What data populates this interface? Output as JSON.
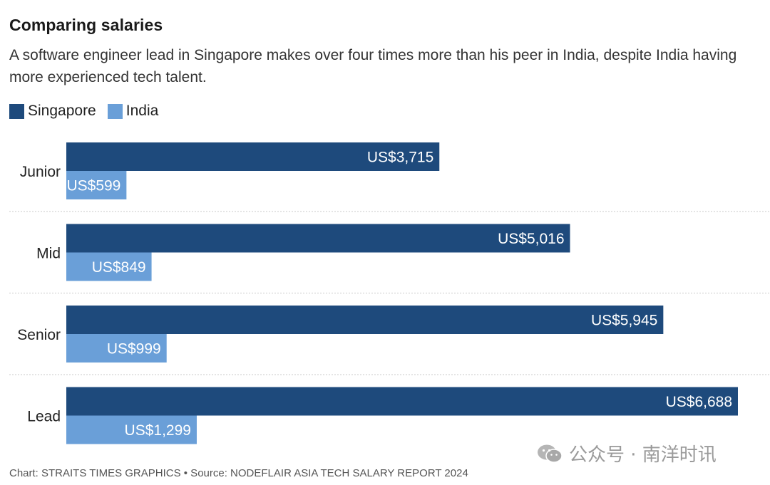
{
  "header": {
    "title": "Comparing salaries",
    "subtitle": "A software engineer lead in Singapore makes over four times more than his peer in India, despite India having more experienced tech talent."
  },
  "legend": [
    {
      "label": "Singapore",
      "color": "#1e4a7c"
    },
    {
      "label": "India",
      "color": "#6a9fd8"
    }
  ],
  "chart_data": {
    "type": "bar",
    "orientation": "horizontal",
    "categories": [
      "Junior",
      "Mid",
      "Senior",
      "Lead"
    ],
    "series": [
      {
        "name": "Singapore",
        "values": [
          3715,
          5016,
          5945,
          6688
        ],
        "labels": [
          "US$3,715",
          "US$5,016",
          "US$5,945",
          "US$6,688"
        ],
        "color": "#1e4a7c"
      },
      {
        "name": "India",
        "values": [
          599,
          849,
          999,
          1299
        ],
        "labels": [
          "US$599",
          "US$849",
          "US$999",
          "US$1,299"
        ],
        "color": "#6a9fd8"
      }
    ],
    "xlim": [
      0,
      6688
    ],
    "grid": false,
    "legend_position": "top-left"
  },
  "footer": {
    "source": "Chart: STRAITS TIMES GRAPHICS • Source: NODEFLAIR ASIA TECH SALARY REPORT 2024"
  },
  "watermark": {
    "text": "公众号 · 南洋时讯",
    "icon": "wechat-icon"
  }
}
